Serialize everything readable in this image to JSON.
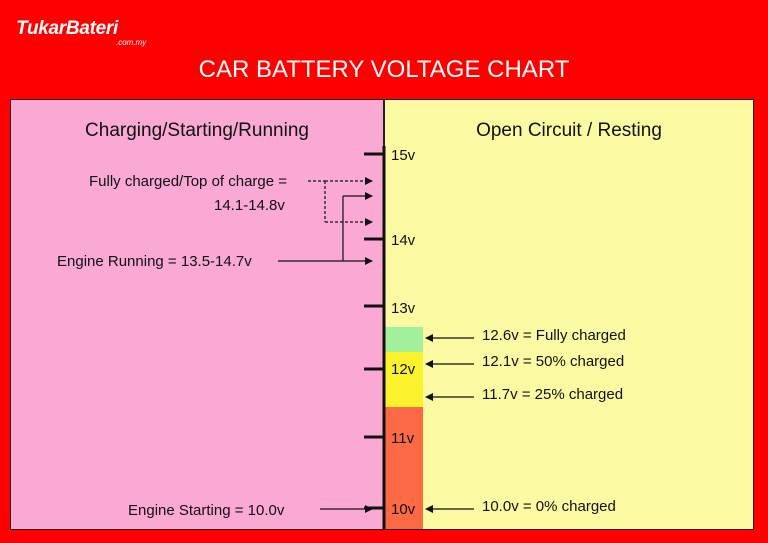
{
  "brand": {
    "name": "TukarBateri",
    "domain": ".com.my"
  },
  "title": "CAR BATTERY VOLTAGE CHART",
  "left_panel": {
    "heading": "Charging/Starting/Running",
    "labels": {
      "fully_charged_line1": "Fully charged/Top of charge =",
      "fully_charged_line2": "14.1-14.8v",
      "engine_running": "Engine Running = 13.5-14.7v",
      "engine_starting": "Engine Starting = 10.0v"
    }
  },
  "right_panel": {
    "heading": "Open Circuit / Resting",
    "labels": {
      "v126": "12.6v = Fully charged",
      "v121": "12.1v = 50% charged",
      "v117": "11.7v = 25% charged",
      "v100": "10.0v = 0% charged"
    }
  },
  "scale": {
    "ticks": [
      "15v",
      "14v",
      "13v",
      "12v",
      "11v",
      "10v"
    ]
  },
  "colors": {
    "background": "#ff0000",
    "left_panel": "#f9a9d3",
    "right_panel": "#fbfaa3",
    "band_green": "#a2f09c",
    "band_yellow": "#f9f22d",
    "band_red": "#fb6a45"
  }
}
